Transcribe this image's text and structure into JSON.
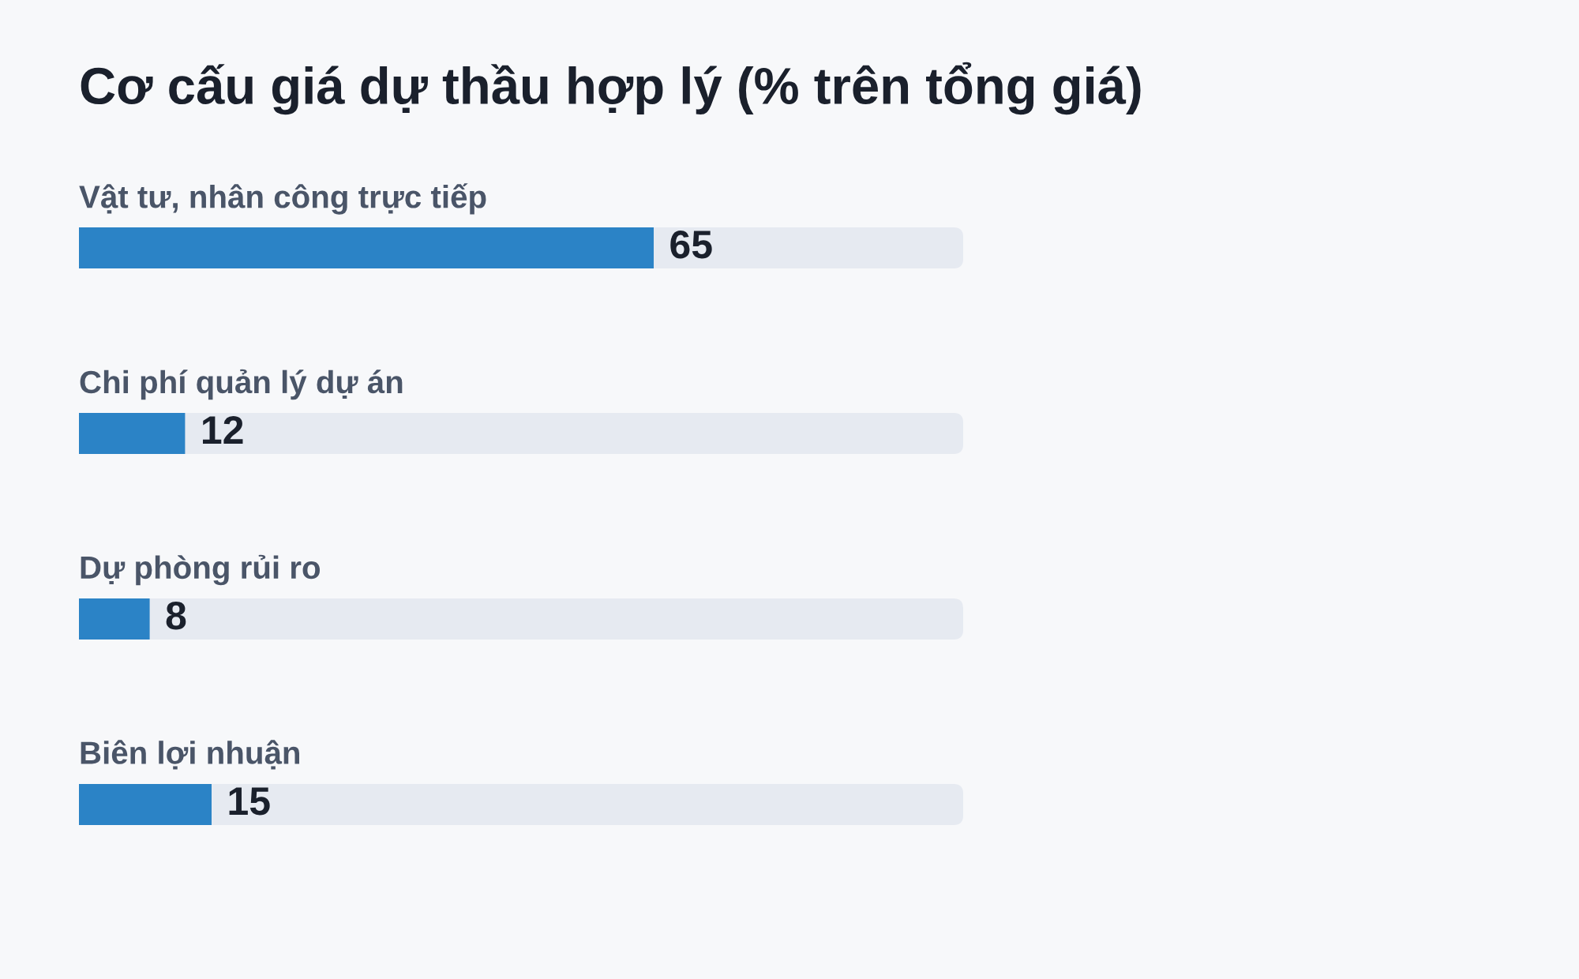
{
  "chart_data": {
    "type": "bar",
    "orientation": "horizontal",
    "title": "Cơ cấu giá dự thầu hợp lý (% trên tổng giá)",
    "categories": [
      "Vật tư, nhân công trực tiếp",
      "Chi phí quản lý dự án",
      "Dự phòng rủi ro",
      "Biên lợi nhuận"
    ],
    "values": [
      65,
      12,
      8,
      15
    ],
    "color": "#2b83c6",
    "data_labels": true,
    "tick_labels": "y"
  }
}
